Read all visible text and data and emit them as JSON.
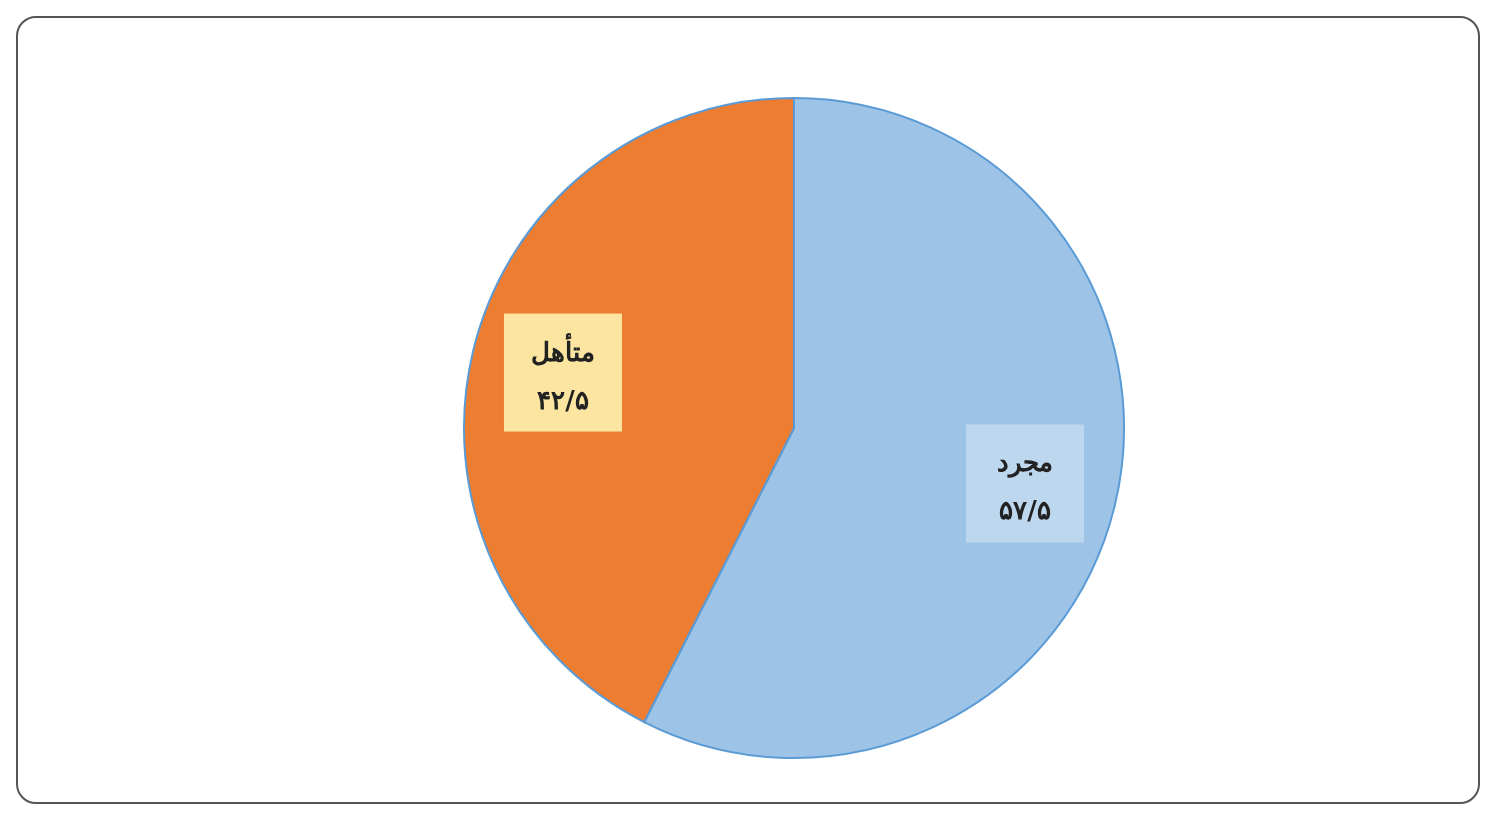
{
  "chart_data": {
    "type": "pie",
    "categories": [
      "مجرد",
      "متأهل"
    ],
    "values": [
      57.5,
      42.5
    ],
    "colors": [
      "#9dc3e6",
      "#ed7d31"
    ],
    "value_labels": [
      "۵۷/۵",
      "۴۲/۵"
    ],
    "legend": false
  }
}
